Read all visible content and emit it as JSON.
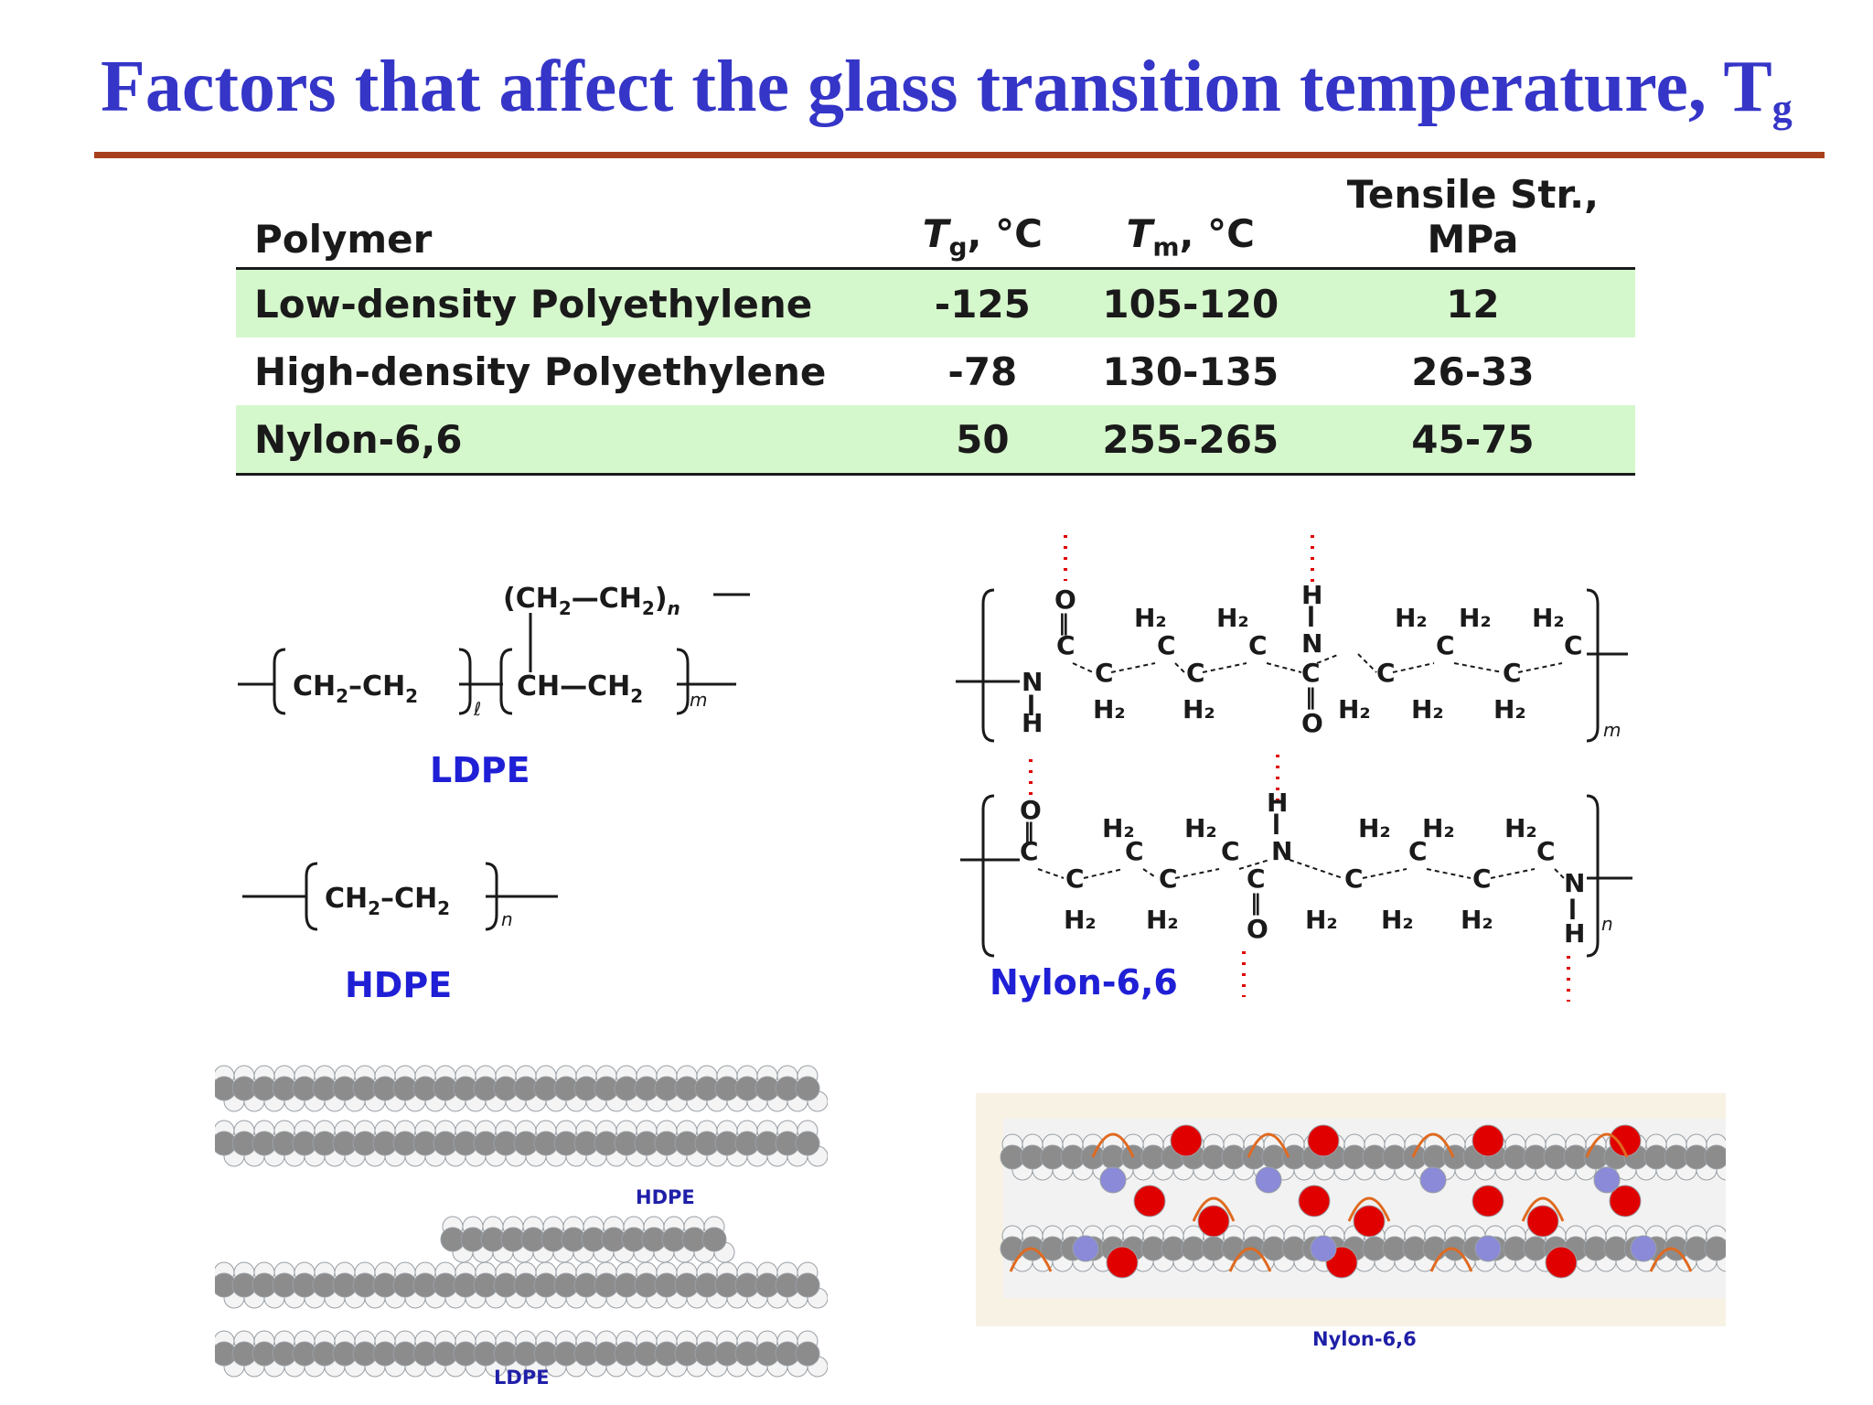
{
  "title": {
    "text": "Factors that affect the glass transition temperature, T",
    "subscript": "g"
  },
  "table": {
    "headers": {
      "polymer": "Polymer",
      "tg_symbol": "T",
      "tg_sub": "g",
      "tg_unit": ", °C",
      "tm_symbol": "T",
      "tm_sub": "m",
      "tm_unit": ", °C",
      "tensile_line1": "Tensile Str.,",
      "tensile_line2": "MPa"
    },
    "rows": [
      {
        "polymer": "Low-density Polyethylene",
        "tg": "-125",
        "tm": "105-120",
        "tensile": "12"
      },
      {
        "polymer": "High-density Polyethylene",
        "tg": "-78",
        "tm": "130-135",
        "tensile": "26-33"
      },
      {
        "polymer": "Nylon-6,6",
        "tg": "50",
        "tm": "255-265",
        "tensile": "45-75"
      }
    ]
  },
  "structures": {
    "ldpe": {
      "label": "LDPE",
      "branch": "(CH2—CH2)n",
      "main": "CH2–CH2",
      "main_sub": "ℓ",
      "branch_unit": "CH—CH2",
      "branch_unit_sub": "m",
      "branch_repeat_sub": "n"
    },
    "hdpe": {
      "label": "HDPE",
      "unit": "CH2–CH2",
      "unit_sub": "n"
    },
    "nylon": {
      "label": "Nylon-6,6",
      "top_repeat_sub": "m",
      "bottom_repeat_sub": "n"
    }
  },
  "models": {
    "hdpe_label": "HDPE",
    "ldpe_label": "LDPE",
    "nylon_label": "Nylon-6,6"
  },
  "colors": {
    "title": "#3535c8",
    "rule": "#a8401c",
    "row_highlight": "#d5f7cc",
    "label_blue": "#1f1fd6",
    "oxygen": "#e00000",
    "nitrogen": "#8a8ad8",
    "hbond": "#e06a20"
  }
}
